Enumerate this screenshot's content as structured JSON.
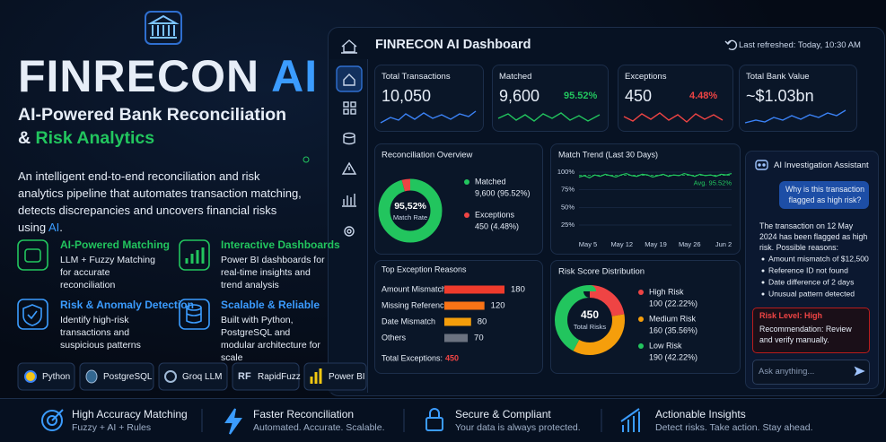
{
  "hero": {
    "title_main": "FINRECON",
    "title_accent": "AI",
    "subtitle_line1": "AI-Powered Bank Reconciliation",
    "subtitle_prefix": "&",
    "subtitle_accent": "Risk Analytics",
    "description": "An intelligent end-to-end reconciliation and risk analytics pipeline that automates transaction matching, detects discrepancies and uncovers financial risks using",
    "description_accent": "AI",
    "description_end": "."
  },
  "features": [
    {
      "title": "AI-Powered Matching",
      "text": "LLM + Fuzzy Matching for accurate reconciliation",
      "color": "#22c55e"
    },
    {
      "title": "Interactive Dashboards",
      "text": "Power BI dashboards for real-time insights and trend analysis",
      "color": "#22c55e"
    },
    {
      "title": "Risk & Anomaly Detection",
      "text": "Identify high-risk transactions and suspicious patterns",
      "color": "#3b9cff"
    },
    {
      "title": "Scalable & Reliable",
      "text": "Built with Python, PostgreSQL and modular architecture for scale",
      "color": "#3b9cff"
    }
  ],
  "tech_stack": [
    {
      "label": "Python"
    },
    {
      "label": "PostgreSQL"
    },
    {
      "label": "Groq LLM"
    },
    {
      "icon": "RF",
      "label": "RapidFuzz"
    },
    {
      "label": "Power BI"
    }
  ],
  "dashboard": {
    "title": "FINRECON AI Dashboard",
    "last_refreshed": "Last refreshed: Today, 10:30 AM",
    "kpis": [
      {
        "label": "Total Transactions",
        "value": "10,050"
      },
      {
        "label": "Matched",
        "value": "9,600",
        "change": "95.52%",
        "change_color": "#22c55e"
      },
      {
        "label": "Exceptions",
        "value": "450",
        "change": "4.48%",
        "change_color": "#ef4444"
      },
      {
        "label": "Total Bank Value",
        "value": "~$1.03bn"
      }
    ],
    "reconciliation_overview": {
      "type": "pie",
      "title": "Reconciliation Overview",
      "center_value": "95,52%",
      "center_label": "Match Rate",
      "series": [
        {
          "name": "Matched",
          "value": 95.52,
          "label": "9,600 (95.52%)",
          "color": "#22c55e"
        },
        {
          "name": "Exceptions",
          "value": 4.48,
          "label": "450 (4.48%)",
          "color": "#ef4444"
        }
      ]
    },
    "match_trend": {
      "type": "line",
      "title": "Match Trend (Last 30 Days)",
      "x_labels": [
        "May 5",
        "May 12",
        "May 19",
        "May 26",
        "Jun 2"
      ],
      "values": [
        93,
        95,
        92,
        96,
        94,
        97,
        95,
        93,
        96,
        98,
        95,
        94,
        97,
        96,
        93,
        95,
        97,
        94,
        96,
        95,
        98,
        96,
        94,
        97,
        95,
        96,
        94,
        97,
        96,
        98
      ],
      "ylim": [
        25,
        100
      ],
      "yticks": [
        {
          "value": 100,
          "label": "100%"
        },
        {
          "value": 75,
          "label": "75%"
        },
        {
          "value": 50,
          "label": "50%"
        },
        {
          "value": 25,
          "label": "25%"
        }
      ],
      "avg": 95.52,
      "avg_label": "Avg. 95.52%",
      "color": "#22c55e",
      "grid": true
    },
    "top_exceptions": {
      "type": "bar",
      "title": "Top Exception Reasons",
      "categories": [
        "Amount Mismatch",
        "Missing Reference",
        "Date Mismatch",
        "Others"
      ],
      "values": [
        180,
        120,
        80,
        70
      ],
      "colors": [
        "#ef3b2c",
        "#f97316",
        "#f59e0b",
        "#6b7280"
      ],
      "total_label": "Total Exceptions:",
      "total_value": "450"
    },
    "risk_distribution": {
      "type": "pie",
      "title": "Risk Score Distribution",
      "center_value": "450",
      "center_label": "Total Risks",
      "series": [
        {
          "name": "High Risk",
          "value": 100,
          "label": "100 (22.22%)",
          "color": "#ef4444"
        },
        {
          "name": "Medium Risk",
          "value": 160,
          "label": "160 (35.56%)",
          "color": "#f59e0b"
        },
        {
          "name": "Low Risk",
          "value": 190,
          "label": "190 (42.22%)",
          "color": "#22c55e"
        }
      ]
    }
  },
  "assistant": {
    "title": "AI Investigation Assistant",
    "user_message": "Why is this transaction flagged as high risk?",
    "reply": "The transaction on 12 May 2024 has been flagged as high risk. Possible reasons:",
    "bullets": [
      "Amount mismatch of $12,500",
      "Reference ID not found",
      "Date difference of 2 days",
      "Unusual pattern detected"
    ],
    "risk_level": "Risk Level: High",
    "recommendation": "Recommendation: Review and verify manually.",
    "input_placeholder": "Ask anything..."
  },
  "footer": [
    {
      "title": "High Accuracy Matching",
      "text": "Fuzzy + AI + Rules"
    },
    {
      "title": "Faster Reconciliation",
      "text": "Automated. Accurate. Scalable."
    },
    {
      "title": "Secure & Compliant",
      "text": "Your data is always protected."
    },
    {
      "title": "Actionable Insights",
      "text": "Detect risks. Take action. Stay ahead."
    }
  ]
}
